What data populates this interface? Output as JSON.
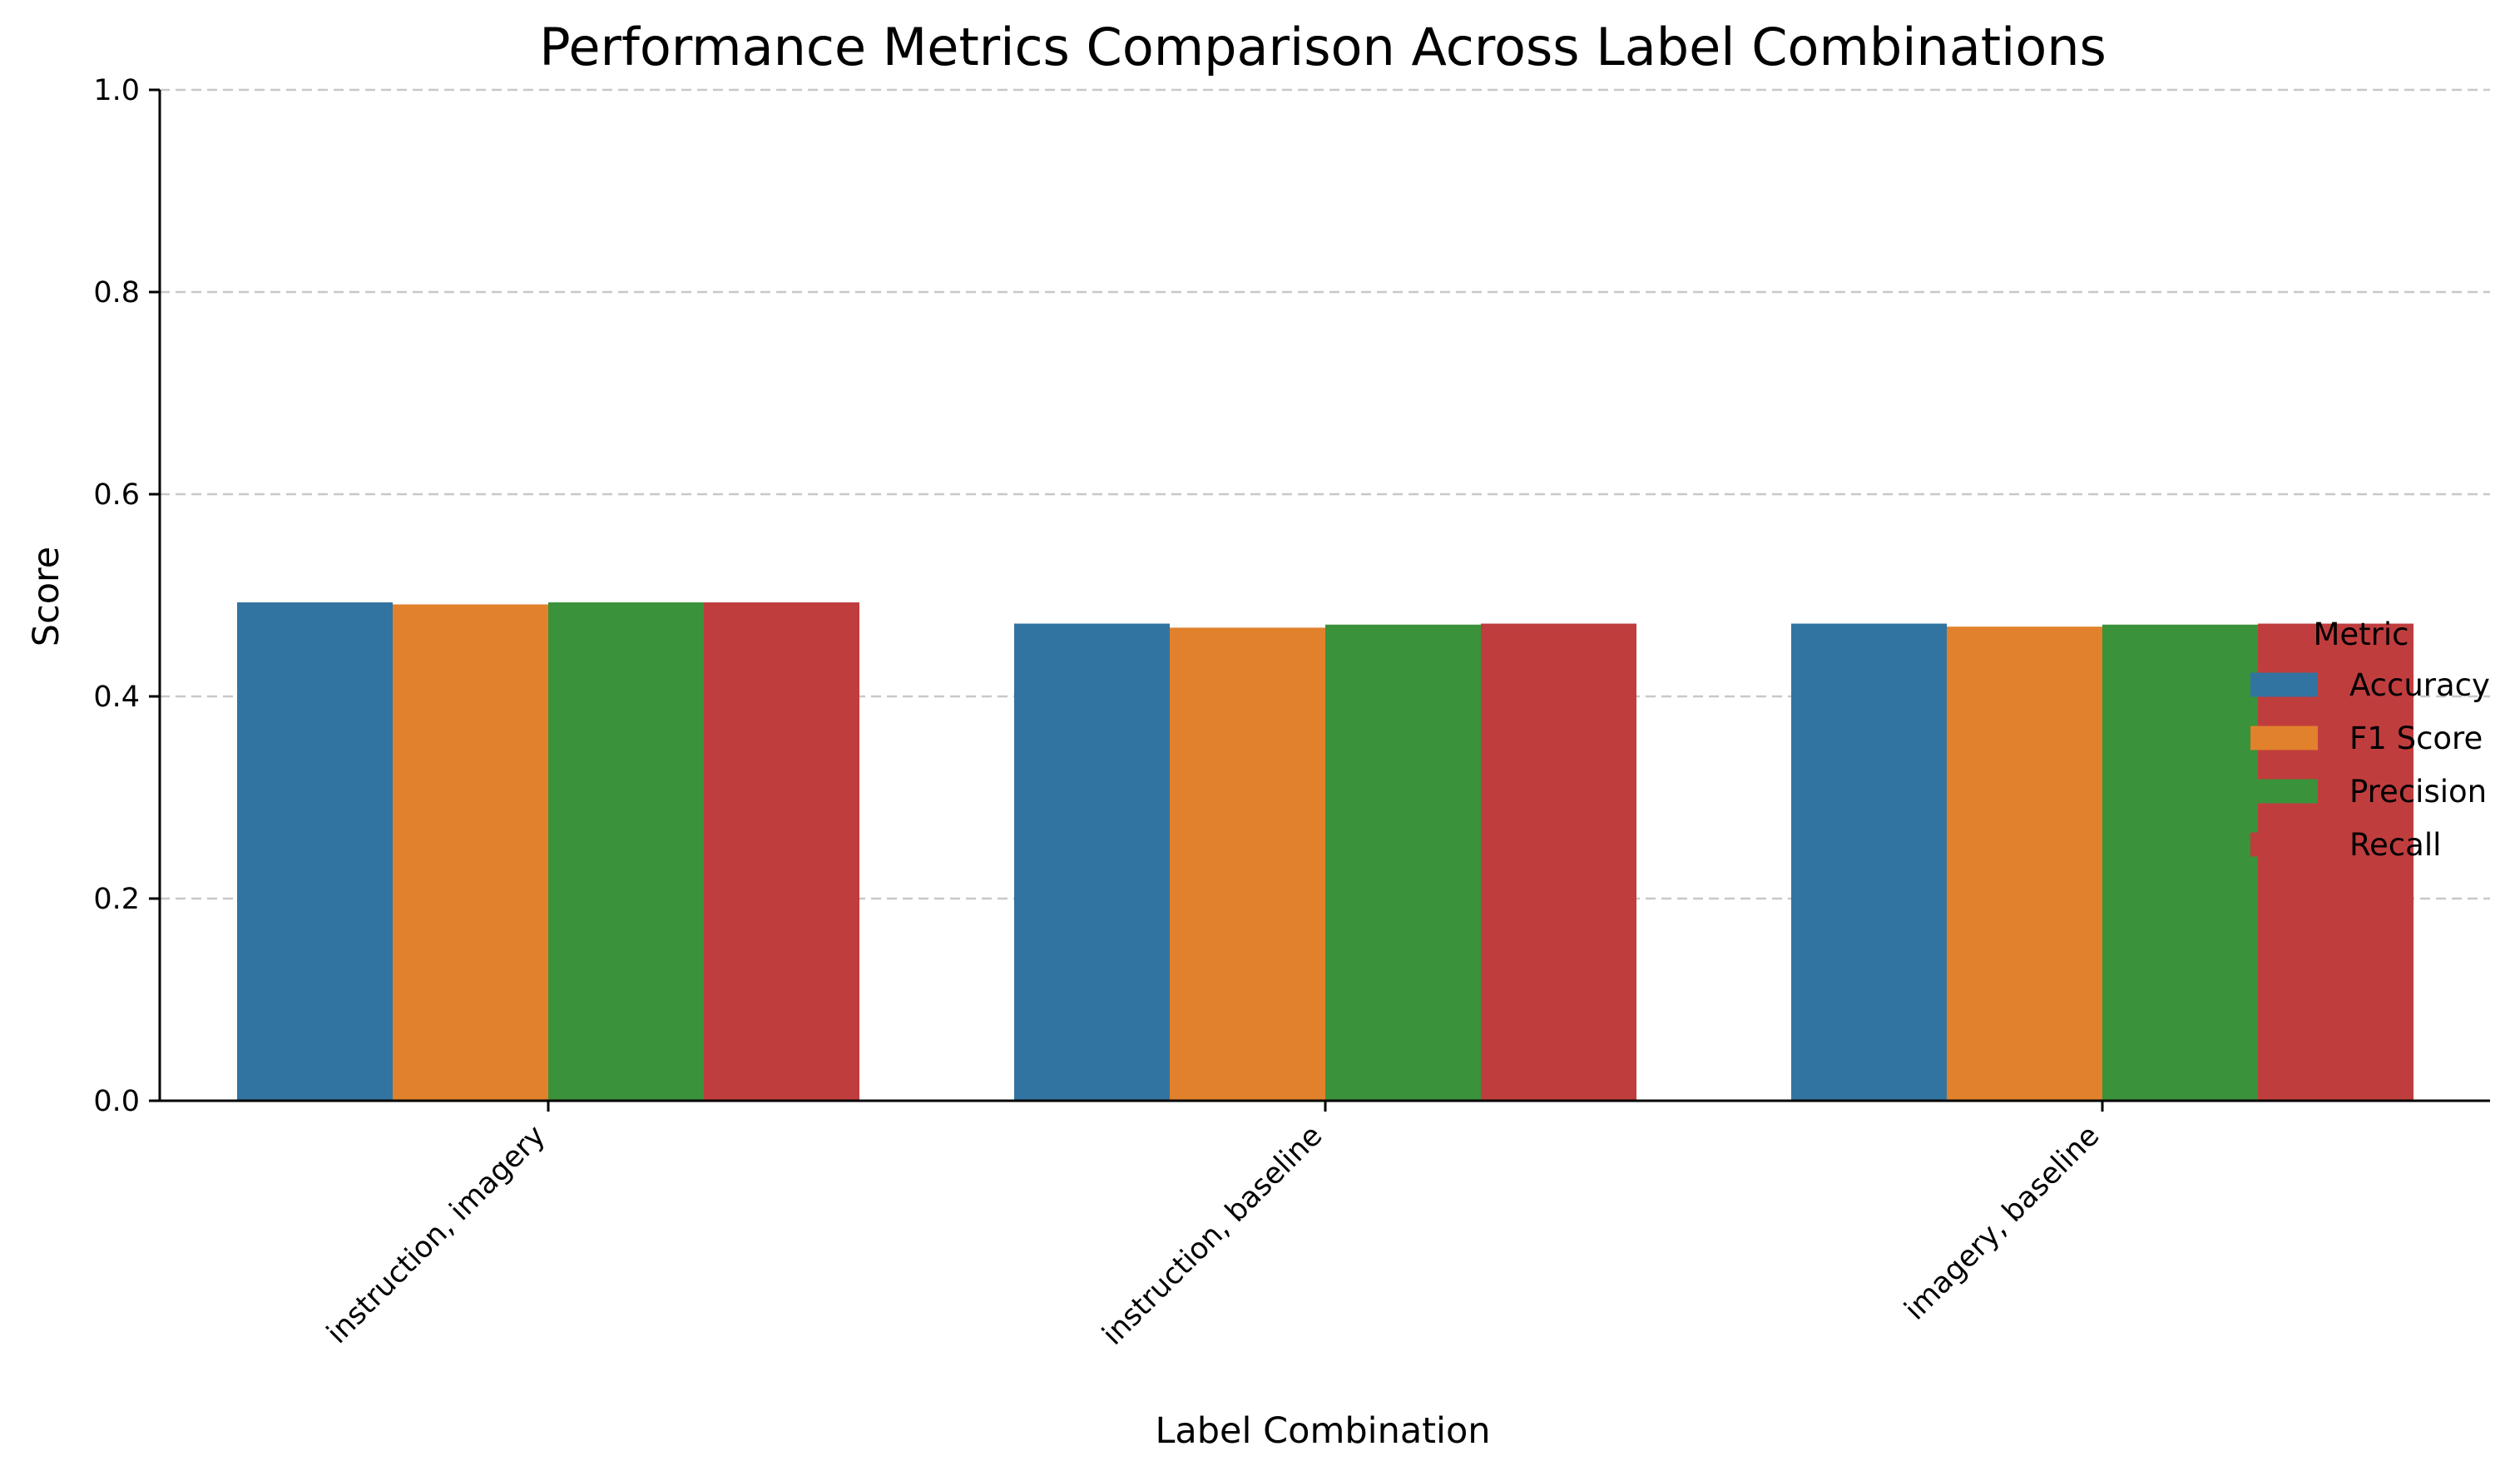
{
  "chart_data": {
    "type": "bar",
    "title": "Performance Metrics Comparison Across Label Combinations",
    "xlabel": "Label Combination",
    "ylabel": "Score",
    "ylim": [
      0,
      1.0
    ],
    "yticks": [
      "0.0",
      "0.2",
      "0.4",
      "0.6",
      "0.8",
      "1.0"
    ],
    "grid": "y, dashed",
    "categories": [
      "instruction, imagery",
      "instruction, baseline",
      "imagery, baseline"
    ],
    "series": [
      {
        "name": "Accuracy",
        "color": "#3274a1",
        "values": [
          0.493,
          0.472,
          0.472
        ]
      },
      {
        "name": "F1 Score",
        "color": "#e1812c",
        "values": [
          0.491,
          0.468,
          0.469
        ]
      },
      {
        "name": "Precision",
        "color": "#3a923a",
        "values": [
          0.493,
          0.471,
          0.471
        ]
      },
      {
        "name": "Recall",
        "color": "#c03d3e",
        "values": [
          0.493,
          0.472,
          0.472
        ]
      }
    ],
    "legend": {
      "title": "Metric",
      "placement": "center-right"
    }
  }
}
